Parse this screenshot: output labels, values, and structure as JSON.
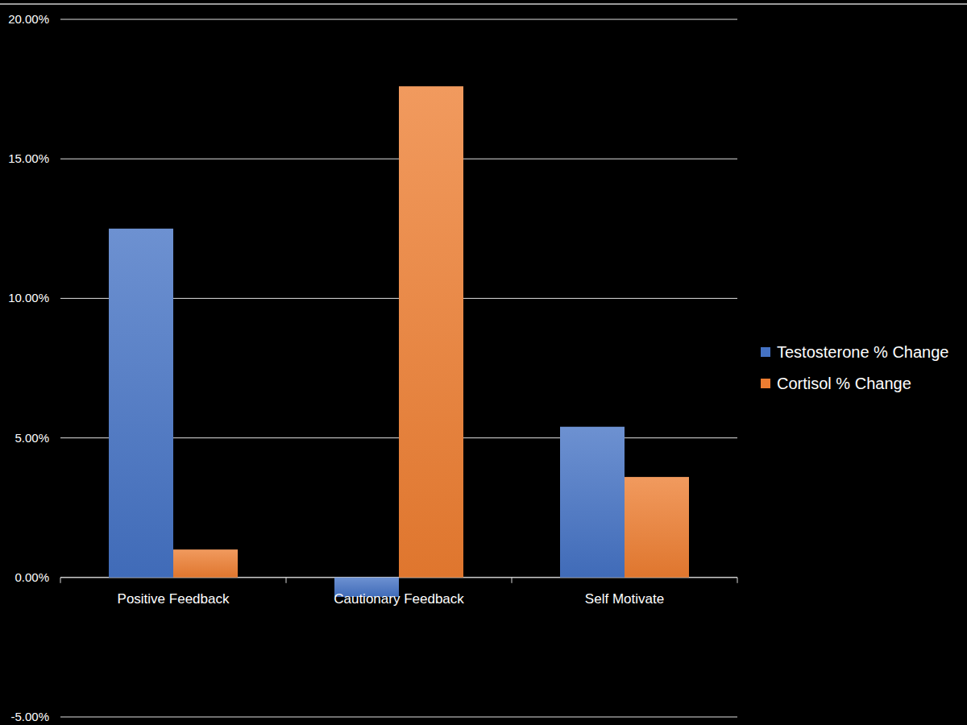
{
  "chart_data": {
    "type": "bar",
    "categories": [
      "Positive Feedback",
      "Cautionary Feedback",
      "Self Motivate"
    ],
    "series": [
      {
        "name": "Testosterone % Change",
        "color": "#4472c4",
        "values": [
          12.5,
          -0.7,
          5.4
        ]
      },
      {
        "name": "Cortisol % Change",
        "color": "#ed7d31",
        "values": [
          1.0,
          17.6,
          3.6
        ]
      }
    ],
    "ylim": [
      -5,
      20
    ],
    "yticks": [
      {
        "value": -5,
        "label": "-5.00%"
      },
      {
        "value": 0,
        "label": "0.00%"
      },
      {
        "value": 5,
        "label": "5.00%"
      },
      {
        "value": 10,
        "label": "10.00%"
      },
      {
        "value": 15,
        "label": "15.00%"
      },
      {
        "value": 20,
        "label": "20.00%"
      }
    ],
    "grid": true,
    "legend": "right"
  }
}
